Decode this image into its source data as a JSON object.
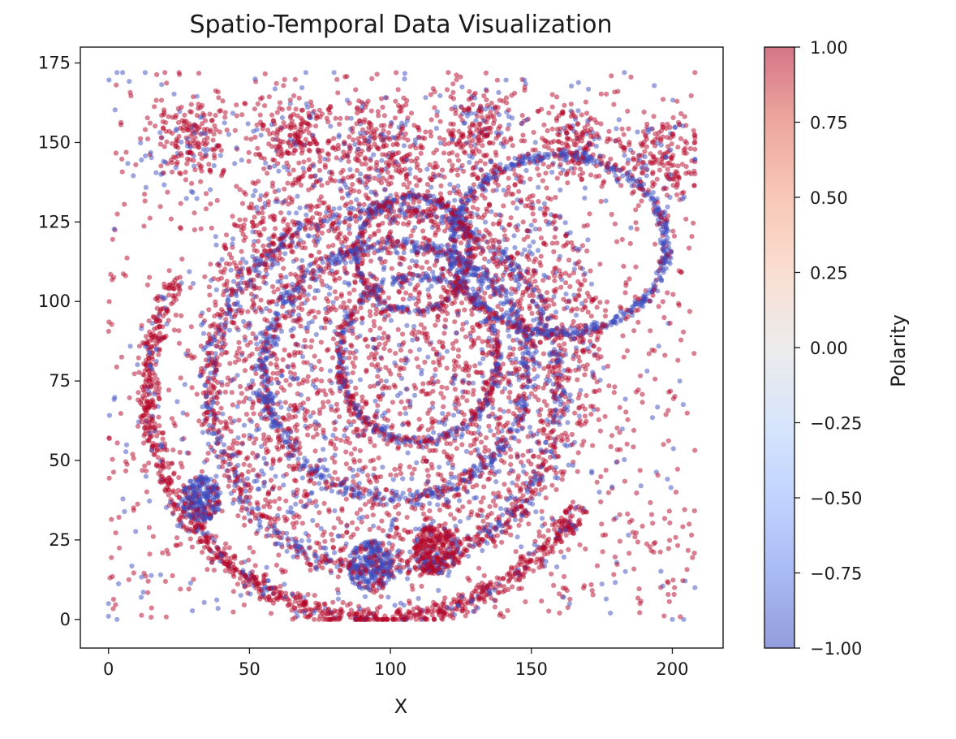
{
  "chart_data": {
    "type": "scatter",
    "title": "Spatio-Temporal Data Visualization",
    "xlabel": "X",
    "ylabel": "",
    "xlim": [
      -10,
      218
    ],
    "ylim": [
      -9,
      180
    ],
    "x_ticks": [
      0,
      50,
      100,
      150,
      200
    ],
    "y_ticks": [
      0,
      25,
      50,
      75,
      100,
      125,
      150,
      175
    ],
    "grid": false,
    "colorbar": {
      "label": "Polarity",
      "range": [
        -1.0,
        1.0
      ],
      "ticks": [
        "−1.00",
        "−0.75",
        "−0.50",
        "−0.25",
        "0.00",
        "0.25",
        "0.50",
        "0.75",
        "1.00"
      ],
      "colormap": "coolwarm",
      "colors": {
        "negative": "#3b4cc0",
        "zero": "#dddddd",
        "positive": "#b40426"
      }
    },
    "point_alpha": 0.5,
    "structures": [
      {
        "kind": "ring",
        "center": [
          98,
          72
        ],
        "radii": [
          62,
          57
        ],
        "polarity": "mixed"
      },
      {
        "kind": "ring",
        "center": [
          102,
          78
        ],
        "radii": [
          47,
          40
        ],
        "polarity": "negative"
      },
      {
        "kind": "ring",
        "center": [
          110,
          82
        ],
        "radii": [
          28,
          26
        ],
        "polarity": "mixed"
      },
      {
        "kind": "ring",
        "center": [
          160,
          118
        ],
        "radii": [
          38,
          28
        ],
        "polarity": "negative"
      },
      {
        "kind": "ring",
        "center": [
          108,
          115
        ],
        "radii": [
          20,
          18
        ],
        "polarity": "mixed"
      },
      {
        "kind": "blob",
        "center": [
          33,
          38
        ],
        "radius": 7,
        "polarity": "negative"
      },
      {
        "kind": "blob",
        "center": [
          93,
          17
        ],
        "radius": 8,
        "polarity": "negative"
      },
      {
        "kind": "blob",
        "center": [
          116,
          22
        ],
        "radius": 8,
        "polarity": "positive"
      },
      {
        "kind": "arc",
        "center": [
          96,
          72
        ],
        "radii": [
          82,
          72
        ],
        "from_deg": 150,
        "to_deg": 330,
        "polarity": "positive"
      }
    ],
    "sample_points": [
      {
        "x": 3,
        "y": 172,
        "polarity": -1
      },
      {
        "x": 5,
        "y": 172,
        "polarity": -1
      },
      {
        "x": 13,
        "y": 172,
        "polarity": -1
      },
      {
        "x": 20,
        "y": 172,
        "polarity": 1
      },
      {
        "x": 25,
        "y": 172,
        "polarity": 1
      },
      {
        "x": 52,
        "y": 170,
        "polarity": -1
      },
      {
        "x": 70,
        "y": 172,
        "polarity": -1
      },
      {
        "x": 80,
        "y": 172,
        "polarity": -1
      },
      {
        "x": 105,
        "y": 170,
        "polarity": -1
      },
      {
        "x": 128,
        "y": 166,
        "polarity": 1
      },
      {
        "x": 183,
        "y": 172,
        "polarity": -1
      },
      {
        "x": 0,
        "y": 1,
        "polarity": -1
      },
      {
        "x": 0,
        "y": 5,
        "polarity": -1
      },
      {
        "x": 3,
        "y": 0,
        "polarity": -1
      },
      {
        "x": 67,
        "y": 1,
        "polarity": -1
      },
      {
        "x": 160,
        "y": 2,
        "polarity": 1
      },
      {
        "x": 178,
        "y": 2,
        "polarity": -1
      },
      {
        "x": 200,
        "y": 0,
        "polarity": -1
      },
      {
        "x": 204,
        "y": 0,
        "polarity": -1
      },
      {
        "x": 208,
        "y": 10,
        "polarity": -1
      },
      {
        "x": 208,
        "y": 172,
        "polarity": 1
      }
    ]
  }
}
